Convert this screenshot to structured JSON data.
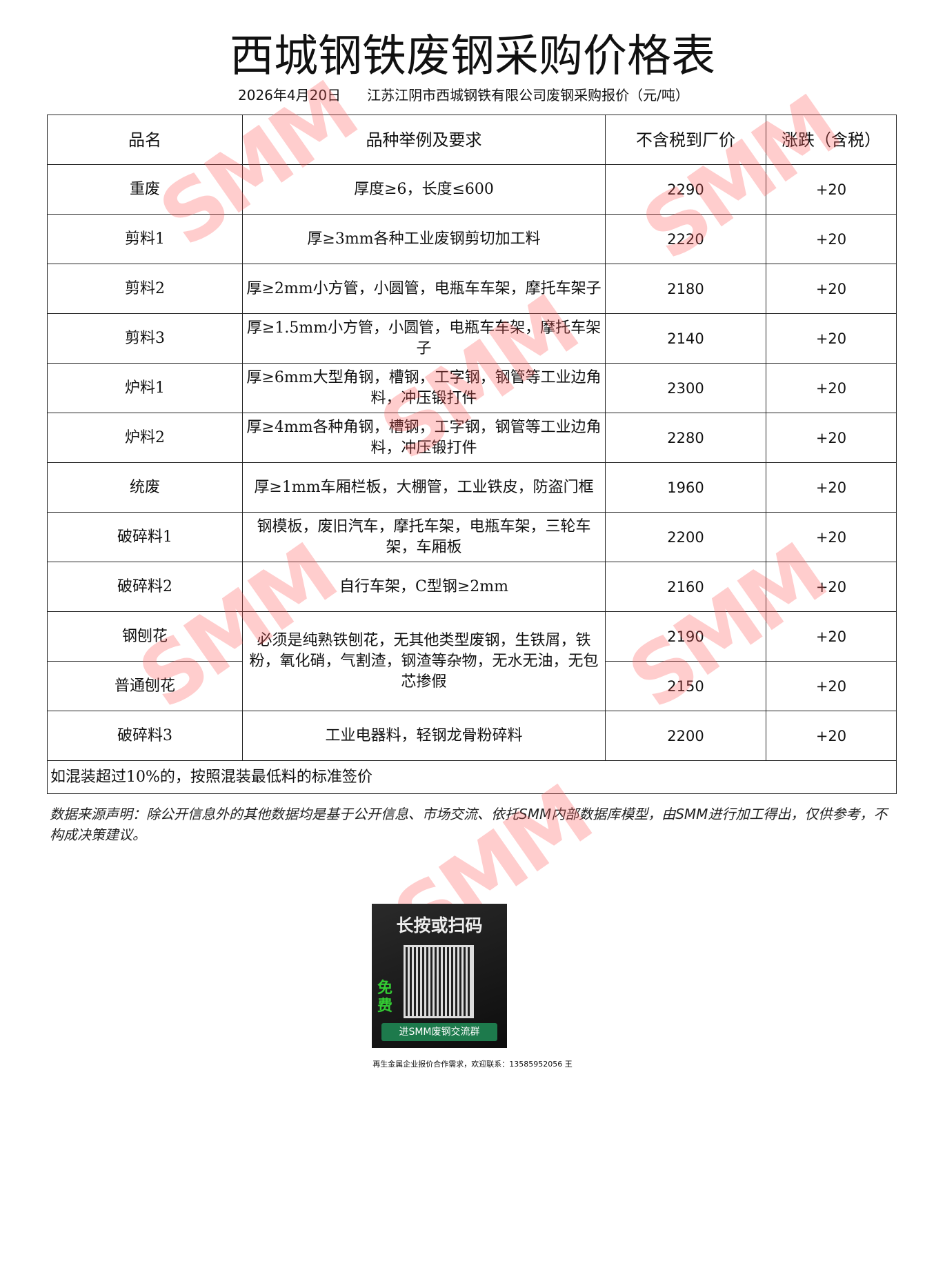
{
  "title": "西城钢铁废钢采购价格表",
  "subtitle": {
    "date": "2026年4月20日",
    "desc": "江苏江阴市西城钢铁有限公司废钢采购报价（元/吨）"
  },
  "table": {
    "headers": [
      "品名",
      "品种举例及要求",
      "不含税到厂价",
      "涨跌（含税）"
    ],
    "rows": [
      {
        "name": "重废",
        "spec": "厚度≥6，长度≤600",
        "price": "2290",
        "change": "+20"
      },
      {
        "name": "剪料1",
        "spec": "厚≥3mm各种工业废钢剪切加工料",
        "price": "2220",
        "change": "+20"
      },
      {
        "name": "剪料2",
        "spec": "厚≥2mm小方管，小圆管，电瓶车车架，摩托车架子",
        "price": "2180",
        "change": "+20"
      },
      {
        "name": "剪料3",
        "spec": "厚≥1.5mm小方管，小圆管，电瓶车车架，摩托车架子",
        "price": "2140",
        "change": "+20"
      },
      {
        "name": "炉料1",
        "spec": "厚≥6mm大型角钢，槽钢，工字钢，钢管等工业边角料，冲压锻打件",
        "price": "2300",
        "change": "+20"
      },
      {
        "name": "炉料2",
        "spec": "厚≥4mm各种角钢，槽钢，工字钢，钢管等工业边角料，冲压锻打件",
        "price": "2280",
        "change": "+20"
      },
      {
        "name": "统废",
        "spec": "厚≥1mm车厢栏板，大棚管，工业铁皮，防盗门框",
        "price": "1960",
        "change": "+20"
      },
      {
        "name": "破碎料1",
        "spec": "钢模板，废旧汽车，摩托车架，电瓶车架，三轮车架，车厢板",
        "price": "2200",
        "change": "+20"
      },
      {
        "name": "破碎料2",
        "spec": "自行车架，C型钢≥2mm",
        "price": "2160",
        "change": "+20"
      },
      {
        "name": "钢刨花",
        "spec": "必须是纯熟铁刨花，无其他类型废钢，生铁屑，铁粉，氧化硝，气割渣，钢渣等杂物，无水无油，无包芯掺假",
        "price": "2190",
        "change": "+20"
      },
      {
        "name": "普通刨花",
        "spec": "",
        "price": "2150",
        "change": "+20"
      },
      {
        "name": "破碎料3",
        "spec": "工业电器料，轻钢龙骨粉碎料",
        "price": "2200",
        "change": "+20"
      }
    ],
    "note": "如混装超过10%的，按照混装最低料的标准签价"
  },
  "disclaimer": "数据来源声明：除公开信息外的其他数据均是基于公开信息、市场交流、依托SMM内部数据库模型，由SMM进行加工得出，仅供参考，不构成决策建议。",
  "watermark": "SMM",
  "qr": {
    "title": "长按或扫码",
    "free": "免费",
    "button": "进SMM废钢交流群"
  },
  "footer": "再生金属企业报价合作需求，欢迎联系：13585952056 王"
}
